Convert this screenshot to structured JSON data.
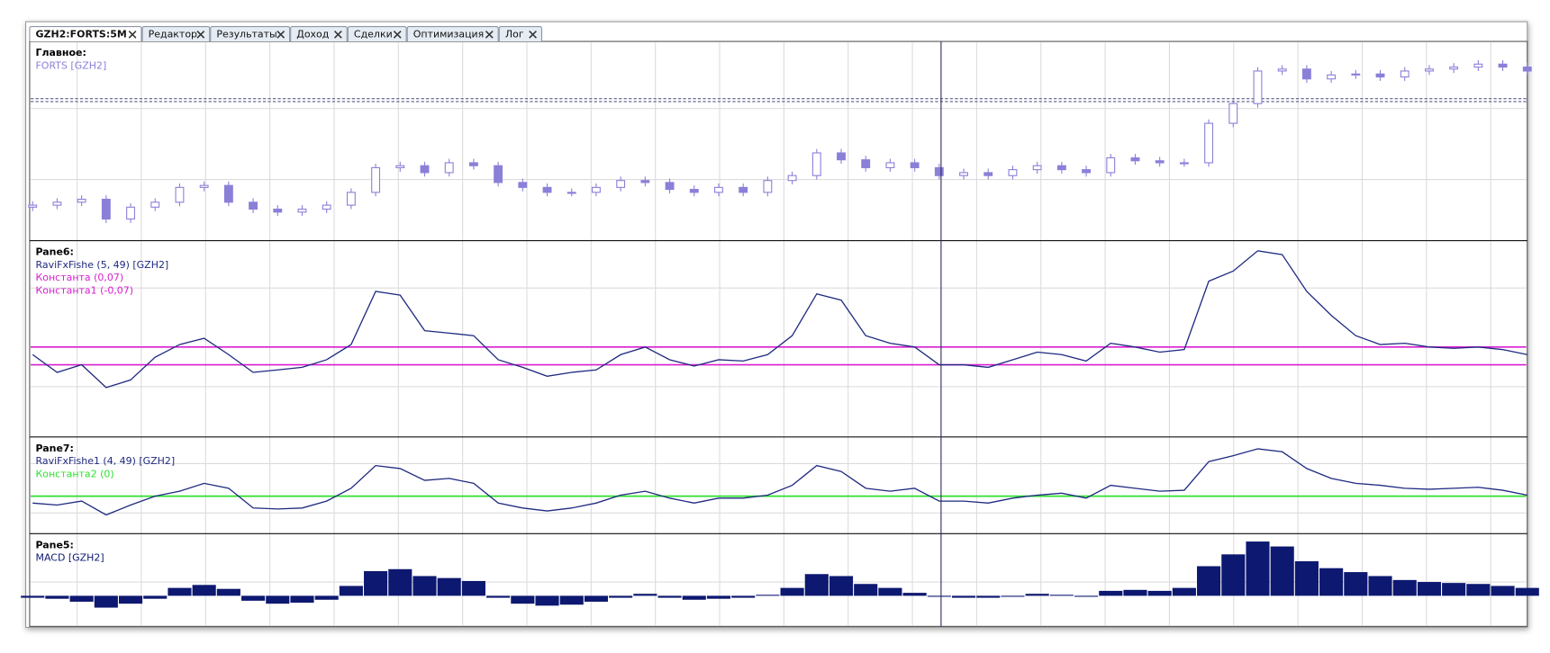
{
  "tabs": [
    {
      "label": "GZH2:FORTS:5M",
      "active": true
    },
    {
      "label": "Редактор",
      "active": false
    },
    {
      "label": "Результаты",
      "active": false
    },
    {
      "label": "Доход",
      "active": false
    },
    {
      "label": "Сделки",
      "active": false
    },
    {
      "label": "Оптимизация",
      "active": false
    },
    {
      "label": "Лог",
      "active": false
    }
  ],
  "chart_data": [
    {
      "type": "candlestick",
      "title": "Главное:",
      "ylim": [
        6,
        208
      ],
      "series": [
        {
          "name": "FORTS [GZH2]",
          "color": "#8a80d8",
          "open": [
            40,
            42,
            45,
            48,
            28,
            40,
            45,
            60,
            62,
            45,
            38,
            35,
            38,
            42,
            55,
            80,
            82,
            75,
            85,
            82,
            65,
            60,
            55,
            55,
            60,
            67,
            65,
            58,
            55,
            60,
            55,
            67,
            72,
            95,
            88,
            80,
            85,
            80,
            72,
            75,
            72,
            78,
            82,
            78,
            75,
            90,
            87,
            85,
            85,
            125,
            145,
            178,
            180,
            170,
            174,
            175,
            172,
            178,
            180,
            182,
            185,
            182
          ],
          "high": [
            46,
            49,
            52,
            52,
            44,
            49,
            64,
            66,
            66,
            49,
            42,
            42,
            46,
            59,
            84,
            86,
            86,
            89,
            89,
            86,
            69,
            64,
            59,
            64,
            71,
            71,
            69,
            62,
            64,
            64,
            71,
            76,
            99,
            99,
            92,
            89,
            89,
            84,
            79,
            79,
            82,
            86,
            86,
            82,
            94,
            94,
            91,
            89,
            129,
            149,
            182,
            184,
            184,
            178,
            179,
            179,
            182,
            184,
            186,
            189,
            189,
            186
          ],
          "low": [
            36,
            38,
            41,
            24,
            24,
            36,
            41,
            56,
            41,
            34,
            31,
            31,
            34,
            38,
            51,
            76,
            71,
            71,
            78,
            61,
            56,
            51,
            51,
            51,
            56,
            61,
            54,
            51,
            51,
            51,
            51,
            63,
            68,
            84,
            76,
            76,
            76,
            68,
            68,
            68,
            68,
            74,
            74,
            71,
            71,
            83,
            81,
            81,
            81,
            121,
            141,
            174,
            166,
            166,
            170,
            168,
            168,
            174,
            176,
            178,
            178,
            174
          ],
          "close": [
            42,
            45,
            48,
            28,
            40,
            45,
            60,
            62,
            45,
            38,
            35,
            38,
            42,
            55,
            80,
            82,
            75,
            85,
            82,
            65,
            60,
            55,
            55,
            60,
            67,
            65,
            58,
            55,
            60,
            55,
            67,
            72,
            95,
            88,
            80,
            85,
            80,
            72,
            75,
            72,
            78,
            82,
            78,
            75,
            90,
            87,
            85,
            85,
            125,
            145,
            178,
            180,
            170,
            174,
            175,
            172,
            178,
            180,
            182,
            185,
            182,
            178
          ]
        }
      ]
    },
    {
      "type": "line",
      "title": "Pane6:",
      "ylim": [
        -0.64,
        0.91
      ],
      "series": [
        {
          "name": "RaviFxFishe (5, 49) [GZH2]",
          "color": "#1f2a80",
          "values": [
            0.01,
            -0.13,
            -0.07,
            -0.25,
            -0.19,
            -0.01,
            0.09,
            0.14,
            0.01,
            -0.13,
            -0.11,
            -0.09,
            -0.03,
            0.09,
            0.51,
            0.48,
            0.2,
            0.18,
            0.16,
            -0.03,
            -0.09,
            -0.16,
            -0.13,
            -0.11,
            0.01,
            0.07,
            -0.03,
            -0.08,
            -0.03,
            -0.04,
            0.01,
            0.16,
            0.49,
            0.44,
            0.16,
            0.1,
            0.07,
            -0.07,
            -0.07,
            -0.09,
            -0.03,
            0.03,
            0.01,
            -0.04,
            0.1,
            0.07,
            0.03,
            0.05,
            0.59,
            0.67,
            0.83,
            0.8,
            0.51,
            0.32,
            0.16,
            0.09,
            0.1,
            0.07,
            0.06,
            0.07,
            0.05,
            0.01
          ]
        }
      ],
      "constants": [
        {
          "name": "Константа (0,07)",
          "value": 0.07,
          "color": "#d81ed0"
        },
        {
          "name": "Константа1 (-0,07)",
          "value": -0.07,
          "color": "#d81ed0"
        }
      ]
    },
    {
      "type": "line",
      "title": "Pane7:",
      "ylim": [
        -0.76,
        1.2
      ],
      "series": [
        {
          "name": "RaviFxFishe1 (4, 49) [GZH2]",
          "color": "#1f2a80",
          "values": [
            -0.14,
            -0.18,
            -0.1,
            -0.38,
            -0.18,
            0,
            0.1,
            0.26,
            0.16,
            -0.24,
            -0.26,
            -0.24,
            -0.1,
            0.16,
            0.62,
            0.56,
            0.32,
            0.36,
            0.26,
            -0.14,
            -0.24,
            -0.3,
            -0.24,
            -0.14,
            0.02,
            0.1,
            -0.04,
            -0.14,
            -0.04,
            -0.04,
            0.02,
            0.22,
            0.62,
            0.5,
            0.16,
            0.1,
            0.16,
            -0.1,
            -0.1,
            -0.14,
            -0.04,
            0.02,
            0.06,
            -0.04,
            0.22,
            0.16,
            0.1,
            0.12,
            0.7,
            0.82,
            0.96,
            0.9,
            0.56,
            0.36,
            0.26,
            0.22,
            0.16,
            0.14,
            0.16,
            0.18,
            0.12,
            0.02
          ]
        }
      ],
      "constants": [
        {
          "name": "Константа2 (0)",
          "value": 0,
          "color": "#2ee02e"
        }
      ]
    },
    {
      "type": "bar",
      "title": "Pane5:",
      "ylim": [
        -0.62,
        1.26
      ],
      "series": [
        {
          "name": "MACD [GZH2]",
          "color": "#0d1870",
          "values": [
            -0.04,
            -0.06,
            -0.12,
            -0.24,
            -0.16,
            -0.06,
            0.16,
            0.22,
            0.14,
            -0.1,
            -0.16,
            -0.14,
            -0.08,
            0.2,
            0.5,
            0.54,
            0.4,
            0.36,
            0.3,
            -0.04,
            -0.16,
            -0.2,
            -0.18,
            -0.12,
            -0.04,
            0.04,
            -0.04,
            -0.08,
            -0.06,
            -0.04,
            0.02,
            0.16,
            0.44,
            0.4,
            0.24,
            0.16,
            0.06,
            -0.02,
            -0.04,
            -0.04,
            -0.02,
            0.04,
            0.02,
            -0.02,
            0.1,
            0.12,
            0.1,
            0.16,
            0.6,
            0.84,
            1.1,
            1,
            0.7,
            0.56,
            0.48,
            0.4,
            0.32,
            0.28,
            0.26,
            0.24,
            0.2,
            0.16
          ]
        }
      ]
    }
  ]
}
